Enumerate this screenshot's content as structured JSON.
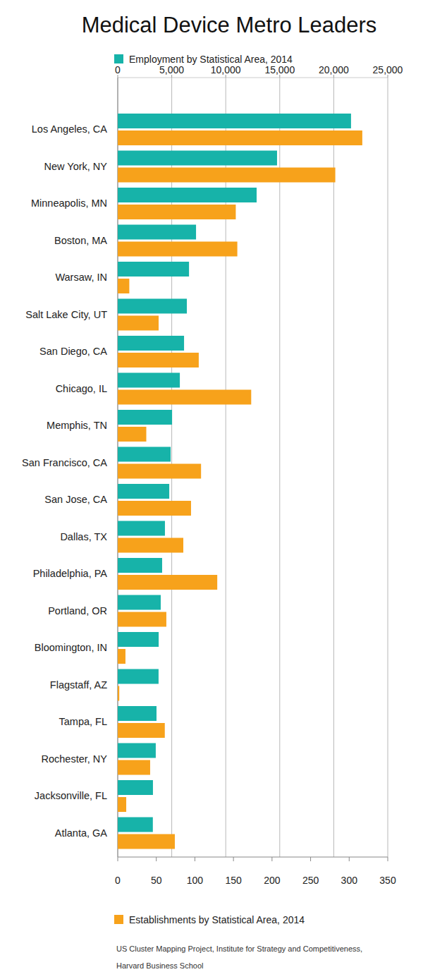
{
  "chart_data": {
    "type": "bar",
    "orientation": "horizontal",
    "title": "Medical Device Metro Leaders",
    "categories": [
      "Los Angeles, CA",
      "New York, NY",
      "Minneapolis, MN",
      "Boston, MA",
      "Warsaw, IN",
      "Salt Lake City, UT",
      "San Diego, CA",
      "Chicago, IL",
      "Memphis, TN",
      "San Francisco, CA",
      "San Jose, CA",
      "Dallas, TX",
      "Philadelphia, PA",
      "Portland, OR",
      "Bloomington, IN",
      "Flagstaff, AZ",
      "Tampa, FL",
      "Rochester, NY",
      "Jacksonville, FL",
      "Atlanta, GA"
    ],
    "series": [
      {
        "name": "Employment by Statistical Area, 2014",
        "color": "#17b3a9",
        "values": [
          21600,
          14750,
          12860,
          7250,
          6600,
          6400,
          6140,
          5750,
          5030,
          4900,
          4770,
          4370,
          4110,
          3980,
          3790,
          3780,
          3590,
          3520,
          3260,
          3250
        ]
      },
      {
        "name": "Establishments by Statistical Area, 2014",
        "color": "#f7a21b",
        "axis": "y2",
        "values": [
          317,
          282,
          153,
          155,
          15,
          53,
          105,
          173,
          37,
          108,
          95,
          85,
          129,
          63,
          10,
          2,
          61,
          42,
          11,
          74
        ]
      }
    ],
    "ylim": [
      0,
      25000
    ],
    "yticks": [
      0,
      {
        "value": 5000,
        "label": "5,000"
      },
      {
        "value": 10000,
        "label": "10,000"
      },
      {
        "value": 15000,
        "label": "15,000"
      },
      {
        "value": 20000,
        "label": "20,000"
      },
      {
        "value": 25000,
        "label": "25,000"
      }
    ],
    "y2lim": [
      0,
      350
    ],
    "y2ticks": [
      0,
      50,
      100,
      150,
      200,
      250,
      300,
      350
    ],
    "grid": true,
    "source": [
      "US Cluster Mapping Project, Institute for Strategy and Competitiveness,",
      "Harvard Business School"
    ]
  }
}
